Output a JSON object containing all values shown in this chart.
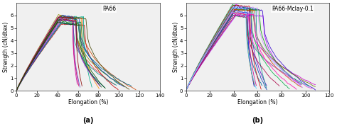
{
  "panel_a": {
    "annotation": "PA66",
    "xlabel": "Elongation (%)",
    "ylabel": "Strength (cN/dtex)",
    "xlim": [
      0,
      140
    ],
    "ylim": [
      0,
      7
    ],
    "xticks": [
      0,
      20,
      40,
      60,
      80,
      100,
      120,
      140
    ],
    "yticks": [
      0,
      1,
      2,
      3,
      4,
      5,
      6
    ],
    "subtitle_label": "(a)",
    "n_curves": 20,
    "peak_x_mean": 42,
    "peak_x_std": 2,
    "peak_y_min": 5.3,
    "peak_y_max": 6.1,
    "plateau_end_min": 55,
    "plateau_end_max": 70,
    "break_x_min": 55,
    "break_x_max": 125,
    "colors": [
      "#c00000",
      "#e03030",
      "#cc4400",
      "#ff8800",
      "#888800",
      "#446600",
      "#007700",
      "#009944",
      "#00aa88",
      "#008888",
      "#006688",
      "#004488",
      "#2244cc",
      "#6644cc",
      "#aa22cc",
      "#cc00aa",
      "#cc0066",
      "#880000",
      "#444400",
      "#005500"
    ]
  },
  "panel_b": {
    "annotation": "PA66-Mclay-0.1",
    "xlabel": "Elongation (%)",
    "ylabel": "Strength (cN/dtex)",
    "xlim": [
      0,
      120
    ],
    "ylim": [
      0,
      7
    ],
    "xticks": [
      0,
      20,
      40,
      60,
      80,
      100,
      120
    ],
    "yticks": [
      0,
      1,
      2,
      3,
      4,
      5,
      6
    ],
    "subtitle_label": "(b)",
    "n_curves": 22,
    "peak_x_mean": 40,
    "peak_x_std": 2,
    "peak_y_min": 5.9,
    "peak_y_max": 6.9,
    "plateau_end_min": 50,
    "plateau_end_max": 65,
    "break_x_min": 55,
    "break_x_max": 110,
    "colors": [
      "#cc00cc",
      "#aa00ff",
      "#6600cc",
      "#3300cc",
      "#0000cc",
      "#0033aa",
      "#006699",
      "#008888",
      "#009966",
      "#00aa44",
      "#009900",
      "#667700",
      "#aa6600",
      "#cc4400",
      "#cc0000",
      "#aa0044",
      "#cc0088",
      "#ff00aa",
      "#ff44cc",
      "#cc88ff",
      "#88aaff",
      "#44ccff"
    ]
  },
  "figsize": [
    4.74,
    1.85
  ],
  "dpi": 100,
  "background_color": "#f0f0f0"
}
